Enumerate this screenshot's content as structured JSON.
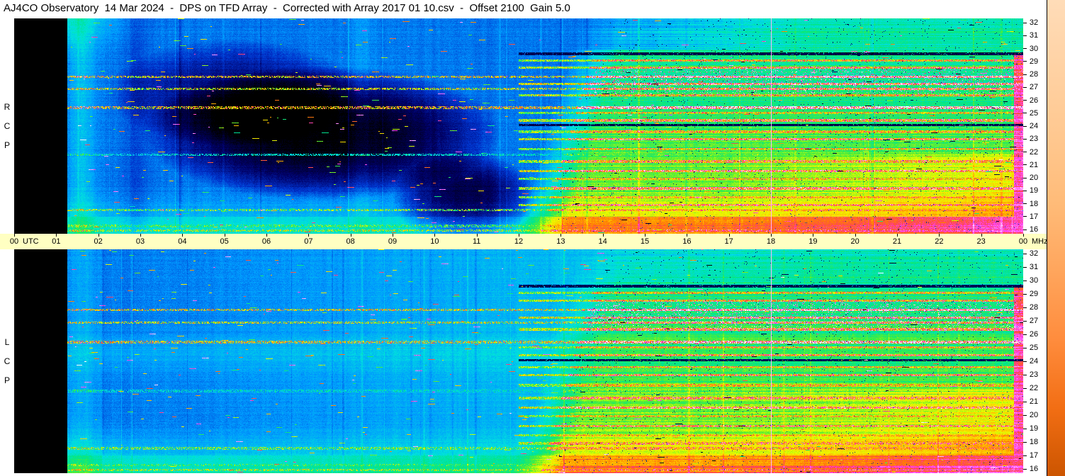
{
  "app": {
    "title": "AJ4CO Observatory  14 Mar 2024  -  DPS on TFD Array  -  Corrected with Array 2017 01 10.csv  -  Offset 2100  Gain 5.0"
  },
  "colors": {
    "background": "#ffffff",
    "title_fg": "#000000",
    "axis_strip_bg": "#ffffc2",
    "panel_nodata": "#000000"
  },
  "panels": [
    {
      "id": "rcp",
      "label_letters": [
        "R",
        "C",
        "P"
      ]
    },
    {
      "id": "lcp",
      "label_letters": [
        "L",
        "C",
        "P"
      ]
    }
  ],
  "time_axis": {
    "left_tick": "00",
    "left_unit": "UTC",
    "hour_ticks": [
      "01",
      "02",
      "03",
      "04",
      "05",
      "06",
      "07",
      "08",
      "09",
      "10",
      "11",
      "12",
      "13",
      "14",
      "15",
      "16",
      "17",
      "18",
      "19",
      "20",
      "21",
      "22",
      "23"
    ],
    "right_tick": "00",
    "right_unit": "MHz"
  },
  "freq_axis": {
    "ticks": [
      "32",
      "31",
      "30",
      "29",
      "28",
      "27",
      "26",
      "25",
      "24",
      "23",
      "22",
      "21",
      "20",
      "19",
      "18",
      "17",
      "16"
    ]
  },
  "colorbar": {
    "colors": [
      "#ffdcb8",
      "#ffd2a4",
      "#ffc890",
      "#ffbb78",
      "#ffa55c",
      "#ff8c3d",
      "#f26e14",
      "#cc5500"
    ]
  },
  "render_shared": {
    "palette": [
      [
        0.0,
        "#000000"
      ],
      [
        0.13,
        "#000066"
      ],
      [
        0.25,
        "#0033cc"
      ],
      [
        0.37,
        "#0099ff"
      ],
      [
        0.47,
        "#00e0e0"
      ],
      [
        0.56,
        "#00e68c"
      ],
      [
        0.63,
        "#55ee33"
      ],
      [
        0.7,
        "#e8ff00"
      ],
      [
        0.76,
        "#ffcc00"
      ],
      [
        0.82,
        "#ff8000"
      ],
      [
        0.87,
        "#ff4455"
      ],
      [
        0.92,
        "#ff44ff"
      ],
      [
        1.0,
        "#ffffff"
      ]
    ],
    "day_edge": {
      "t": 11.92,
      "slope": 0.095,
      "ramp": 1.15
    },
    "vline": {
      "t": 18.0,
      "halfw": 0.012,
      "v": 0.97
    },
    "magenta_col": {
      "t": 23.78,
      "fmax": 29.5
    },
    "speckle": {
      "f0": 26.3,
      "f1": 28.3,
      "p": 0.08
    },
    "rfi_lines": [
      {
        "f": 27.7,
        "s": 0.95,
        "t0": 1,
        "t1": 24
      },
      {
        "f": 26.8,
        "s": 0.9,
        "t0": 1,
        "t1": 24
      },
      {
        "f": 25.4,
        "s": 0.97,
        "t0": 1,
        "t1": 24
      },
      {
        "f": 21.9,
        "s": 0.62,
        "t0": 1,
        "t1": 24
      },
      {
        "f": 17.8,
        "s": 0.8,
        "t0": 1,
        "t1": 24
      },
      {
        "f": 16.6,
        "s": 0.75,
        "t0": 1,
        "t1": 24
      },
      {
        "f": 16.25,
        "s": 0.85,
        "t0": 1,
        "t1": 24
      },
      {
        "f": 28.9,
        "s": 0.8,
        "t0": 12,
        "t1": 24
      },
      {
        "f": 28.35,
        "s": 0.85,
        "t0": 12,
        "t1": 24
      },
      {
        "f": 27.15,
        "s": 0.92,
        "t0": 12,
        "t1": 24
      },
      {
        "f": 26.3,
        "s": 0.85,
        "t0": 12,
        "t1": 24
      },
      {
        "f": 25.0,
        "s": 0.8,
        "t0": 12,
        "t1": 24
      },
      {
        "f": 24.45,
        "s": 0.85,
        "t0": 12,
        "t1": 24
      },
      {
        "f": 23.6,
        "s": 0.8,
        "t0": 12,
        "t1": 24
      },
      {
        "f": 23.05,
        "s": 0.88,
        "t0": 12,
        "t1": 24
      },
      {
        "f": 22.3,
        "s": 0.8,
        "t0": 12,
        "t1": 24
      },
      {
        "f": 21.4,
        "s": 0.85,
        "t0": 12,
        "t1": 24
      },
      {
        "f": 20.7,
        "s": 0.92,
        "t0": 12,
        "t1": 24
      },
      {
        "f": 20.1,
        "s": 0.8,
        "t0": 12,
        "t1": 24
      },
      {
        "f": 19.4,
        "s": 0.85,
        "t0": 12,
        "t1": 24
      },
      {
        "f": 18.75,
        "s": 0.8,
        "t0": 12,
        "t1": 24
      },
      {
        "f": 18.15,
        "s": 0.85,
        "t0": 12,
        "t1": 24
      },
      {
        "f": 29.4,
        "s": 0.08,
        "t0": 12,
        "t1": 24
      },
      {
        "f": 24.1,
        "s": 0.07,
        "t0": 12,
        "t1": 24
      }
    ]
  },
  "chart_data": [
    {
      "type": "heatmap",
      "title": "RCP dynamic spectrum",
      "xlabel": "UTC",
      "ylabel": "MHz",
      "x_range": [
        0,
        24
      ],
      "y_range": [
        16,
        32
      ],
      "data_start_hour": 1.25,
      "description": "Right circular polarization. Black (no data) 00-01:15 UTC; quiet blue night 01-12 UTC with large black low-signal region ~04-11:30 UTC between 18.5-28 MHz; sharp sunrise transition at 12 UTC to strong green/yellow/orange daytime emission with dense horizontal RFI lines, pink speckle 26-28 MHz, hot orange band below 18 MHz, magenta burst column near 23:50, pale vertical artifact at 18:00.",
      "seed": 123457,
      "night_base": 0.33,
      "night_tilt": 0.0,
      "day_base": 0.6,
      "top_glow": 1,
      "top_day_dark": 0.12,
      "night_band": null,
      "corner_glow": 0,
      "blobs": [
        {
          "t": 7.3,
          "f": 23.5,
          "rt": 4.3,
          "rf": 5.0,
          "depth": 0.34
        },
        {
          "t": 10.7,
          "f": 18.6,
          "rt": 1.7,
          "rf": 3.6,
          "depth": 0.26
        },
        {
          "t": 5.2,
          "f": 26.5,
          "rt": 3.0,
          "rf": 4.0,
          "depth": 0.18
        }
      ],
      "bright_cols": [
        {
          "t": 1.6,
          "w": 0.35,
          "amp": 0.09
        },
        {
          "t": 8.3,
          "w": 0.25,
          "amp": 0.05
        },
        {
          "t": 2.9,
          "w": 0.3,
          "amp": -0.05
        }
      ]
    },
    {
      "type": "heatmap",
      "title": "LCP dynamic spectrum",
      "xlabel": "UTC",
      "ylabel": "MHz",
      "x_range": [
        0,
        24
      ],
      "y_range": [
        16,
        32
      ],
      "data_start_hour": 1.25,
      "description": "Left circular polarization. Black (no data) 00-01:15 UTC; uniform blue/cyan night 01-12 UTC brightening toward 12 UTC with cyan band near 24.5 MHz; daytime structure after 12 UTC matching RCP: green/yellow background, horizontal RFI lines, hot orange band below 18 MHz, magenta column near 23:50, pale vertical artifact at 18:00.",
      "seed": 777771,
      "night_base": 0.36,
      "night_tilt": 0.008,
      "day_base": 0.6,
      "top_glow": 0,
      "top_day_dark": 0.05,
      "night_band": {
        "f": 24.5,
        "amp": 0.05
      },
      "corner_glow": 0.08,
      "blobs": [],
      "bright_cols": [
        {
          "t": 1.6,
          "w": 0.4,
          "amp": 0.07
        }
      ]
    }
  ]
}
